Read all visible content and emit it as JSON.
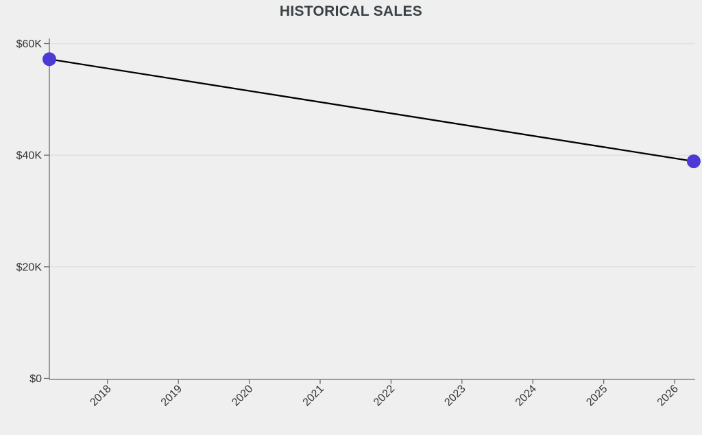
{
  "chart_data": {
    "type": "line",
    "title": "HISTORICAL SALES",
    "xlabel": "",
    "ylabel": "",
    "legend": "none",
    "grid": "horizontal",
    "series": [
      {
        "name": "Historical Sales",
        "points": [
          {
            "x": 2017.18,
            "y": 57200
          },
          {
            "x": 2026.27,
            "y": 38900
          }
        ]
      }
    ],
    "x_ticks": [
      {
        "value": 2018,
        "label": "2018"
      },
      {
        "value": 2019,
        "label": "2019"
      },
      {
        "value": 2020,
        "label": "2020"
      },
      {
        "value": 2021,
        "label": "2021"
      },
      {
        "value": 2022,
        "label": "2022"
      },
      {
        "value": 2023,
        "label": "2023"
      },
      {
        "value": 2024,
        "label": "2024"
      },
      {
        "value": 2025,
        "label": "2025"
      },
      {
        "value": 2026,
        "label": "2026"
      }
    ],
    "y_ticks": [
      {
        "value": 0,
        "label": "$0"
      },
      {
        "value": 20000,
        "label": "$20K"
      },
      {
        "value": 40000,
        "label": "$40K"
      },
      {
        "value": 60000,
        "label": "$60K"
      }
    ],
    "xlim": [
      2017.18,
      2026.29
    ],
    "ylim": [
      0,
      60000
    ],
    "colors": {
      "background": "#efefef",
      "grid": "#e1e1e1",
      "axis": "#6a6a6a",
      "tick_label": "#333333",
      "title": "#3a4145",
      "line": "#000000",
      "marker": "#4b3ad5"
    }
  }
}
